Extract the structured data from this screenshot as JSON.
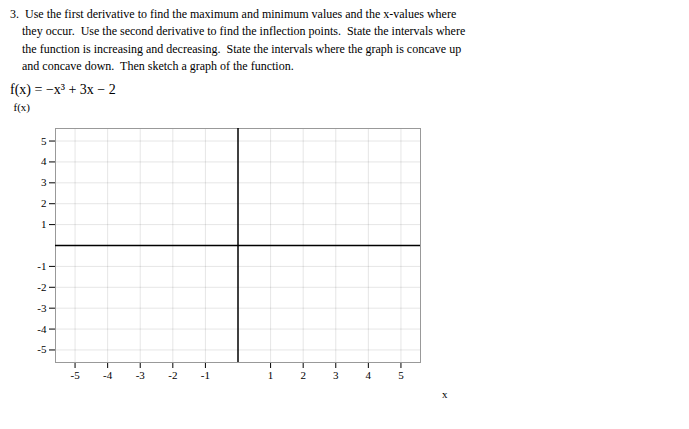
{
  "chart_data": {
    "type": "axes",
    "title": "3.  Use the first derivative to find the maximum and minimum values and the x-values where\n    they occur.  Use the second derivative to find the inflection points.  State the intervals where\n    the function is increasing and decreasing.  State the intervals where the graph is concave up\n    and concave down.  Then sketch a graph of the function.",
    "subtitle": "f(x) = −x³ + 3x − 2",
    "x_label": "x",
    "y_label": "f(x)",
    "xlim": [
      -5.6,
      5.6
    ],
    "ylim": [
      -5.6,
      5.6
    ],
    "xticks": [
      -5,
      -4,
      -3,
      -2,
      -1,
      1,
      2,
      3,
      4,
      5
    ],
    "yticks": [
      -5,
      -4,
      -3,
      -2,
      -1,
      1,
      2,
      3,
      4,
      5
    ],
    "grid": true,
    "color": "#000000"
  }
}
